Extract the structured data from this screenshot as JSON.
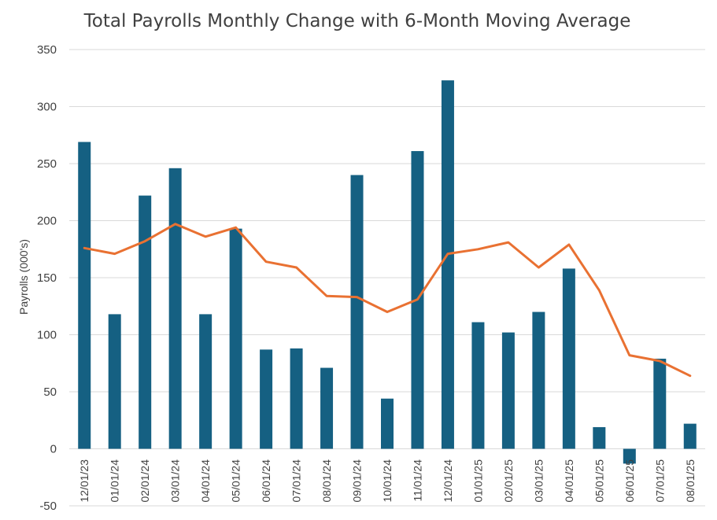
{
  "chart_data": {
    "type": "bar",
    "title": "Total Payrolls Monthly Change with 6-Month Moving Average",
    "xlabel": "",
    "ylabel": "Payrolls (000's)",
    "ylim": [
      -50,
      350
    ],
    "yticks": [
      -50,
      0,
      50,
      100,
      150,
      200,
      250,
      300,
      350
    ],
    "grid": true,
    "categories": [
      "12/01/23",
      "01/01/24",
      "02/01/24",
      "03/01/24",
      "04/01/24",
      "05/01/24",
      "06/01/24",
      "07/01/24",
      "08/01/24",
      "09/01/24",
      "10/01/24",
      "11/01/24",
      "12/01/24",
      "01/01/25",
      "02/01/25",
      "03/01/25",
      "04/01/25",
      "05/01/25",
      "06/01/25",
      "07/01/25",
      "08/01/25"
    ],
    "series": [
      {
        "name": "Monthly Change",
        "kind": "bar",
        "color": "#156082",
        "values": [
          269,
          118,
          222,
          246,
          118,
          193,
          87,
          88,
          71,
          240,
          44,
          261,
          323,
          111,
          102,
          120,
          158,
          19,
          -13,
          79,
          22
        ]
      },
      {
        "name": "6-Month Moving Average",
        "kind": "line",
        "color": "#E97132",
        "values": [
          176,
          171,
          182,
          197,
          186,
          194,
          164,
          159,
          134,
          133,
          120,
          131,
          171,
          175,
          181,
          159,
          179,
          139,
          82,
          77,
          64
        ]
      }
    ]
  }
}
